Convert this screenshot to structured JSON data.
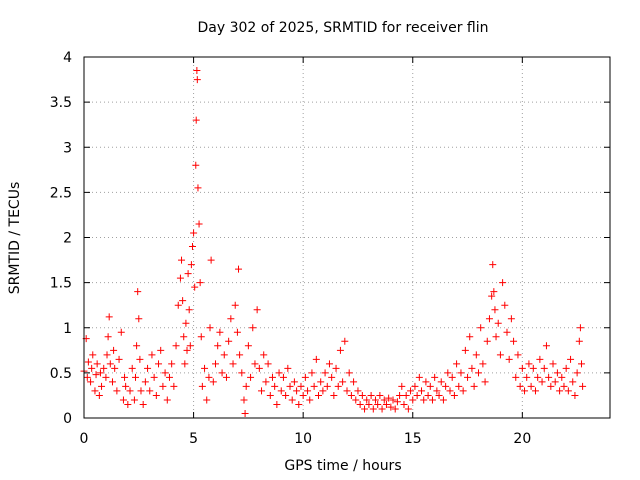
{
  "chart_data": {
    "type": "scatter",
    "title": "Day 302 of 2025, SRMTID for receiver flin",
    "xlabel": "GPS time / hours",
    "ylabel": "SRMTID / TECUs",
    "xlim": [
      0,
      24
    ],
    "ylim": [
      0,
      4
    ],
    "x_ticks": [
      0,
      5,
      10,
      15,
      20
    ],
    "x_tick_labels": [
      "0",
      "5",
      "10",
      "15",
      "20"
    ],
    "y_ticks": [
      0,
      0.5,
      1,
      1.5,
      2,
      2.5,
      3,
      3.5,
      4
    ],
    "y_tick_labels": [
      "0",
      "0.5",
      "1",
      "1.5",
      "2",
      "2.5",
      "3",
      "3.5",
      "4"
    ],
    "grid": true,
    "marker": "+",
    "series_color": "#ff0000",
    "series": [
      {
        "name": "SRMTID",
        "points": [
          [
            0.0,
            0.52
          ],
          [
            0.1,
            0.88
          ],
          [
            0.15,
            0.45
          ],
          [
            0.2,
            0.62
          ],
          [
            0.3,
            0.4
          ],
          [
            0.35,
            0.55
          ],
          [
            0.4,
            0.7
          ],
          [
            0.5,
            0.3
          ],
          [
            0.55,
            0.48
          ],
          [
            0.6,
            0.6
          ],
          [
            0.7,
            0.25
          ],
          [
            0.75,
            0.5
          ],
          [
            0.8,
            0.35
          ],
          [
            0.9,
            0.55
          ],
          [
            1.0,
            0.45
          ],
          [
            1.05,
            0.7
          ],
          [
            1.1,
            0.9
          ],
          [
            1.15,
            1.12
          ],
          [
            1.2,
            0.6
          ],
          [
            1.3,
            0.4
          ],
          [
            1.35,
            0.75
          ],
          [
            1.4,
            0.55
          ],
          [
            1.5,
            0.3
          ],
          [
            1.6,
            0.65
          ],
          [
            1.7,
            0.95
          ],
          [
            1.8,
            0.2
          ],
          [
            1.85,
            0.45
          ],
          [
            1.9,
            0.35
          ],
          [
            2.0,
            0.15
          ],
          [
            2.1,
            0.3
          ],
          [
            2.2,
            0.55
          ],
          [
            2.3,
            0.2
          ],
          [
            2.35,
            0.45
          ],
          [
            2.4,
            0.8
          ],
          [
            2.45,
            1.4
          ],
          [
            2.5,
            1.1
          ],
          [
            2.55,
            0.65
          ],
          [
            2.6,
            0.3
          ],
          [
            2.7,
            0.15
          ],
          [
            2.8,
            0.4
          ],
          [
            2.9,
            0.55
          ],
          [
            3.0,
            0.3
          ],
          [
            3.1,
            0.7
          ],
          [
            3.2,
            0.45
          ],
          [
            3.3,
            0.25
          ],
          [
            3.4,
            0.6
          ],
          [
            3.5,
            0.75
          ],
          [
            3.6,
            0.35
          ],
          [
            3.7,
            0.5
          ],
          [
            3.8,
            0.2
          ],
          [
            3.9,
            0.45
          ],
          [
            4.0,
            0.6
          ],
          [
            4.1,
            0.35
          ],
          [
            4.2,
            0.8
          ],
          [
            4.3,
            1.25
          ],
          [
            4.4,
            1.55
          ],
          [
            4.45,
            1.75
          ],
          [
            4.5,
            1.3
          ],
          [
            4.55,
            0.9
          ],
          [
            4.6,
            0.6
          ],
          [
            4.65,
            1.05
          ],
          [
            4.7,
            0.75
          ],
          [
            4.75,
            1.6
          ],
          [
            4.8,
            1.2
          ],
          [
            4.85,
            0.8
          ],
          [
            4.9,
            1.7
          ],
          [
            4.95,
            1.9
          ],
          [
            5.0,
            2.05
          ],
          [
            5.05,
            1.45
          ],
          [
            5.1,
            2.8
          ],
          [
            5.12,
            3.3
          ],
          [
            5.15,
            3.85
          ],
          [
            5.17,
            3.75
          ],
          [
            5.2,
            2.55
          ],
          [
            5.25,
            2.15
          ],
          [
            5.3,
            1.5
          ],
          [
            5.35,
            0.9
          ],
          [
            5.4,
            0.35
          ],
          [
            5.5,
            0.55
          ],
          [
            5.6,
            0.2
          ],
          [
            5.7,
            0.45
          ],
          [
            5.75,
            1.0
          ],
          [
            5.8,
            1.75
          ],
          [
            5.9,
            0.4
          ],
          [
            6.0,
            0.6
          ],
          [
            6.1,
            0.8
          ],
          [
            6.2,
            0.95
          ],
          [
            6.3,
            0.5
          ],
          [
            6.4,
            0.7
          ],
          [
            6.5,
            0.45
          ],
          [
            6.6,
            0.85
          ],
          [
            6.7,
            1.1
          ],
          [
            6.8,
            0.6
          ],
          [
            6.9,
            1.25
          ],
          [
            7.0,
            0.95
          ],
          [
            7.05,
            1.65
          ],
          [
            7.1,
            0.7
          ],
          [
            7.2,
            0.5
          ],
          [
            7.3,
            0.2
          ],
          [
            7.35,
            0.05
          ],
          [
            7.4,
            0.35
          ],
          [
            7.5,
            0.8
          ],
          [
            7.6,
            0.45
          ],
          [
            7.7,
            1.0
          ],
          [
            7.8,
            0.6
          ],
          [
            7.9,
            1.2
          ],
          [
            8.0,
            0.55
          ],
          [
            8.1,
            0.3
          ],
          [
            8.2,
            0.7
          ],
          [
            8.3,
            0.4
          ],
          [
            8.4,
            0.6
          ],
          [
            8.5,
            0.25
          ],
          [
            8.6,
            0.45
          ],
          [
            8.7,
            0.35
          ],
          [
            8.8,
            0.15
          ],
          [
            8.9,
            0.5
          ],
          [
            9.0,
            0.3
          ],
          [
            9.1,
            0.45
          ],
          [
            9.2,
            0.25
          ],
          [
            9.3,
            0.55
          ],
          [
            9.4,
            0.35
          ],
          [
            9.5,
            0.2
          ],
          [
            9.6,
            0.4
          ],
          [
            9.7,
            0.3
          ],
          [
            9.8,
            0.15
          ],
          [
            9.9,
            0.35
          ],
          [
            10.0,
            0.25
          ],
          [
            10.1,
            0.45
          ],
          [
            10.2,
            0.3
          ],
          [
            10.3,
            0.2
          ],
          [
            10.4,
            0.5
          ],
          [
            10.5,
            0.35
          ],
          [
            10.6,
            0.65
          ],
          [
            10.7,
            0.25
          ],
          [
            10.8,
            0.4
          ],
          [
            10.9,
            0.3
          ],
          [
            11.0,
            0.5
          ],
          [
            11.1,
            0.35
          ],
          [
            11.2,
            0.6
          ],
          [
            11.3,
            0.45
          ],
          [
            11.4,
            0.25
          ],
          [
            11.5,
            0.55
          ],
          [
            11.6,
            0.35
          ],
          [
            11.7,
            0.75
          ],
          [
            11.8,
            0.4
          ],
          [
            11.9,
            0.85
          ],
          [
            12.0,
            0.3
          ],
          [
            12.1,
            0.5
          ],
          [
            12.2,
            0.25
          ],
          [
            12.3,
            0.4
          ],
          [
            12.4,
            0.2
          ],
          [
            12.5,
            0.3
          ],
          [
            12.6,
            0.15
          ],
          [
            12.7,
            0.25
          ],
          [
            12.8,
            0.1
          ],
          [
            12.9,
            0.2
          ],
          [
            13.0,
            0.15
          ],
          [
            13.1,
            0.25
          ],
          [
            13.2,
            0.1
          ],
          [
            13.3,
            0.2
          ],
          [
            13.4,
            0.15
          ],
          [
            13.5,
            0.25
          ],
          [
            13.6,
            0.1
          ],
          [
            13.7,
            0.2
          ],
          [
            13.8,
            0.15
          ],
          [
            13.9,
            0.22
          ],
          [
            14.0,
            0.12
          ],
          [
            14.1,
            0.2
          ],
          [
            14.2,
            0.1
          ],
          [
            14.3,
            0.18
          ],
          [
            14.4,
            0.25
          ],
          [
            14.5,
            0.35
          ],
          [
            14.6,
            0.15
          ],
          [
            14.7,
            0.25
          ],
          [
            14.8,
            0.1
          ],
          [
            14.9,
            0.3
          ],
          [
            15.0,
            0.2
          ],
          [
            15.1,
            0.35
          ],
          [
            15.2,
            0.25
          ],
          [
            15.3,
            0.45
          ],
          [
            15.4,
            0.3
          ],
          [
            15.5,
            0.2
          ],
          [
            15.6,
            0.4
          ],
          [
            15.7,
            0.25
          ],
          [
            15.8,
            0.35
          ],
          [
            15.9,
            0.2
          ],
          [
            16.0,
            0.45
          ],
          [
            16.1,
            0.3
          ],
          [
            16.2,
            0.25
          ],
          [
            16.3,
            0.4
          ],
          [
            16.4,
            0.2
          ],
          [
            16.5,
            0.35
          ],
          [
            16.6,
            0.5
          ],
          [
            16.7,
            0.3
          ],
          [
            16.8,
            0.45
          ],
          [
            16.9,
            0.25
          ],
          [
            17.0,
            0.6
          ],
          [
            17.1,
            0.35
          ],
          [
            17.2,
            0.5
          ],
          [
            17.3,
            0.3
          ],
          [
            17.4,
            0.75
          ],
          [
            17.5,
            0.45
          ],
          [
            17.6,
            0.9
          ],
          [
            17.7,
            0.55
          ],
          [
            17.8,
            0.35
          ],
          [
            17.9,
            0.7
          ],
          [
            18.0,
            0.5
          ],
          [
            18.1,
            1.0
          ],
          [
            18.2,
            0.6
          ],
          [
            18.3,
            0.4
          ],
          [
            18.4,
            0.85
          ],
          [
            18.5,
            1.1
          ],
          [
            18.6,
            1.35
          ],
          [
            18.65,
            1.7
          ],
          [
            18.7,
            1.4
          ],
          [
            18.75,
            1.2
          ],
          [
            18.8,
            0.9
          ],
          [
            18.9,
            1.05
          ],
          [
            19.0,
            0.7
          ],
          [
            19.1,
            1.5
          ],
          [
            19.2,
            1.25
          ],
          [
            19.3,
            0.95
          ],
          [
            19.4,
            0.65
          ],
          [
            19.5,
            1.1
          ],
          [
            19.6,
            0.85
          ],
          [
            19.7,
            0.45
          ],
          [
            19.8,
            0.7
          ],
          [
            19.9,
            0.35
          ],
          [
            20.0,
            0.55
          ],
          [
            20.1,
            0.3
          ],
          [
            20.2,
            0.45
          ],
          [
            20.3,
            0.6
          ],
          [
            20.4,
            0.35
          ],
          [
            20.5,
            0.55
          ],
          [
            20.6,
            0.3
          ],
          [
            20.7,
            0.45
          ],
          [
            20.8,
            0.65
          ],
          [
            20.9,
            0.4
          ],
          [
            21.0,
            0.55
          ],
          [
            21.1,
            0.8
          ],
          [
            21.2,
            0.45
          ],
          [
            21.3,
            0.35
          ],
          [
            21.4,
            0.6
          ],
          [
            21.5,
            0.4
          ],
          [
            21.6,
            0.5
          ],
          [
            21.7,
            0.3
          ],
          [
            21.8,
            0.45
          ],
          [
            21.9,
            0.35
          ],
          [
            22.0,
            0.55
          ],
          [
            22.1,
            0.3
          ],
          [
            22.2,
            0.65
          ],
          [
            22.3,
            0.4
          ],
          [
            22.4,
            0.25
          ],
          [
            22.5,
            0.5
          ],
          [
            22.6,
            0.85
          ],
          [
            22.65,
            1.0
          ],
          [
            22.7,
            0.6
          ],
          [
            22.75,
            0.35
          ]
        ]
      }
    ]
  }
}
